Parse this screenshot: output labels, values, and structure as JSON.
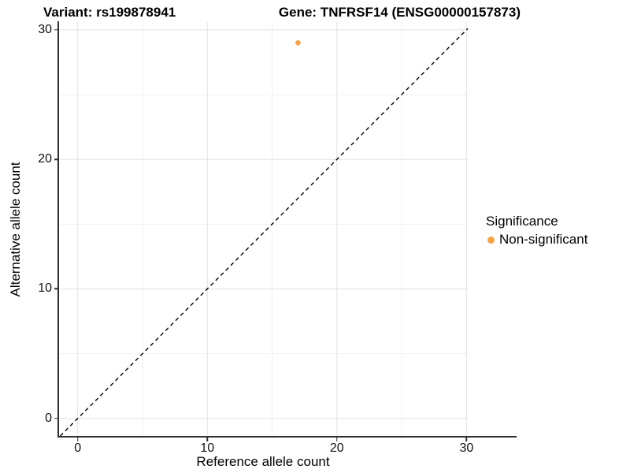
{
  "chart_data": {
    "type": "scatter",
    "title_left": "Variant: rs199878941",
    "title_right": "Gene: TNFRSF14 (ENSG00000157873)",
    "xlabel": "Reference allele count",
    "ylabel": "Alternative allele count",
    "xlim": [
      -1.5,
      30.1
    ],
    "ylim": [
      -1.35,
      30.6
    ],
    "xticks": [
      "0",
      "10",
      "20",
      "30"
    ],
    "yticks": [
      "0",
      "10",
      "20",
      "30"
    ],
    "xtick_values": [
      0,
      10,
      20,
      30
    ],
    "ytick_values": [
      0,
      10,
      20,
      30
    ],
    "xminor_values": [
      5,
      15,
      25
    ],
    "yminor_values": [
      5,
      15,
      25
    ],
    "grid": true,
    "points": [
      {
        "x": 17,
        "y": 29,
        "series": "Non-significant"
      }
    ],
    "reference_line": {
      "slope": 1,
      "intercept": 0,
      "style": "dashed",
      "color": "#000000"
    },
    "legend": {
      "title": "Significance",
      "position": "right",
      "items": [
        {
          "label": "Non-significant",
          "color": "#F9A242"
        }
      ]
    },
    "colors": {
      "point": "#F9A242",
      "grid_major": "#E2E2E2",
      "grid_minor": "#F1F1F1",
      "axis_line": "#2F2F2F"
    }
  }
}
